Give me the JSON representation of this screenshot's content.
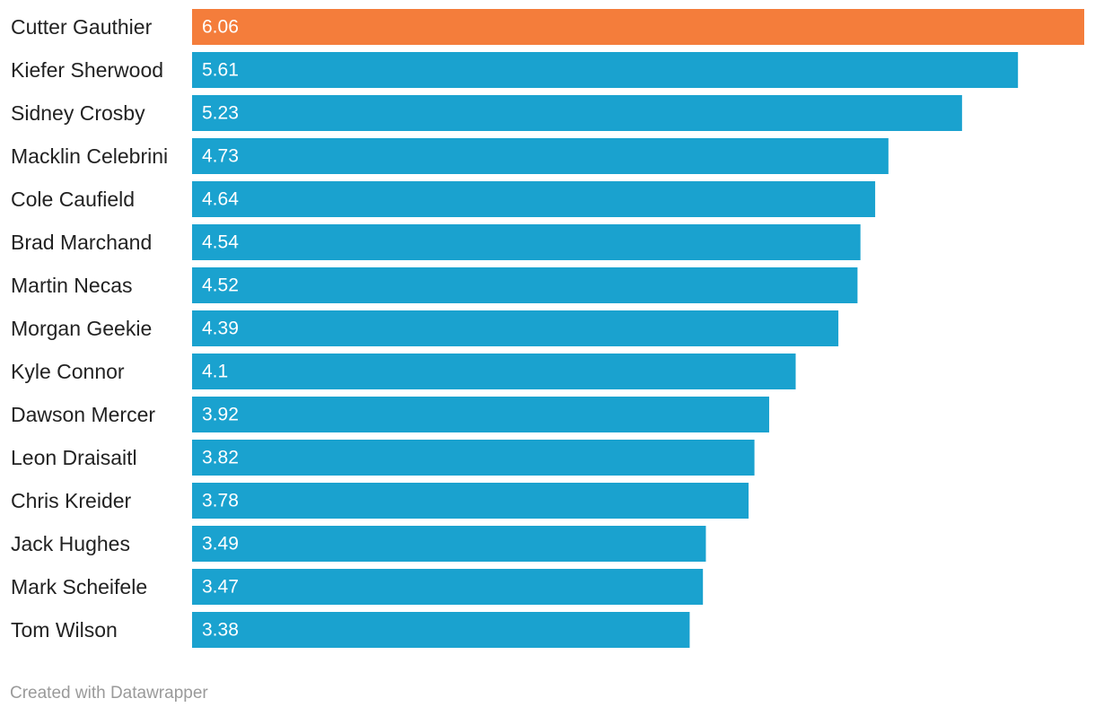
{
  "chart_data": {
    "type": "bar",
    "orientation": "horizontal",
    "categories": [
      "Cutter Gauthier",
      "Kiefer Sherwood",
      "Sidney Crosby",
      "Macklin Celebrini",
      "Cole Caufield",
      "Brad Marchand",
      "Martin Necas",
      "Morgan Geekie",
      "Kyle Connor",
      "Dawson Mercer",
      "Leon Draisaitl",
      "Chris Kreider",
      "Jack Hughes",
      "Mark Scheifele",
      "Tom Wilson"
    ],
    "values": [
      6.06,
      5.61,
      5.23,
      4.73,
      4.64,
      4.54,
      4.52,
      4.39,
      4.1,
      3.92,
      3.82,
      3.78,
      3.49,
      3.47,
      3.38
    ],
    "value_labels": [
      "6.06",
      "5.61",
      "5.23",
      "4.73",
      "4.64",
      "4.54",
      "4.52",
      "4.39",
      "4.1",
      "3.92",
      "3.82",
      "3.78",
      "3.49",
      "3.47",
      "3.38"
    ],
    "xlim": [
      0,
      6.06
    ],
    "grid": false,
    "legend": "none",
    "colors": {
      "highlight": "#f47d3b",
      "default": "#1aa2cf"
    },
    "highlight_index": 0
  },
  "footer": {
    "credit": "Created with Datawrapper"
  }
}
